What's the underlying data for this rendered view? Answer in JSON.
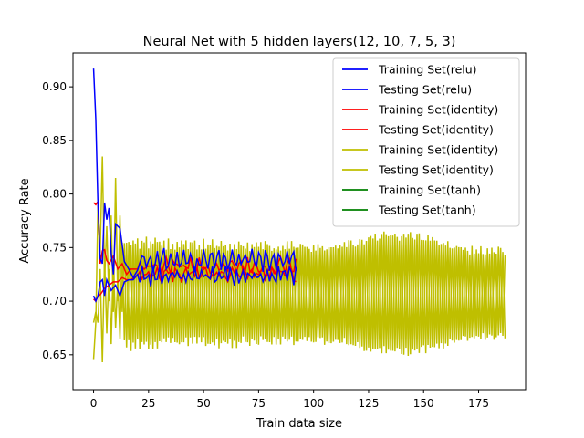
{
  "chart_data": {
    "type": "line",
    "title": "Neural Net with 5 hidden layers(12, 10, 7, 5, 3)",
    "xlabel": "Train data size",
    "ylabel": "Accuracy Rate",
    "xlim": [
      -9.35,
      196.35
    ],
    "ylim": [
      0.6175,
      0.9316
    ],
    "xticks": [
      0,
      25,
      50,
      75,
      100,
      125,
      150,
      175
    ],
    "yticks": [
      0.65,
      0.7,
      0.75,
      0.8,
      0.85,
      0.9
    ],
    "ytick_labels": [
      "0.65",
      "0.70",
      "0.75",
      "0.80",
      "0.85",
      "0.90"
    ],
    "grid": false,
    "legend_position": "top-right",
    "series": [
      {
        "name": "Training Set(relu)",
        "color": "#0000ff",
        "keypoints": [
          [
            0,
            0.917
          ],
          [
            1,
            0.87
          ],
          [
            2,
            0.79
          ],
          [
            3,
            0.74
          ],
          [
            4,
            0.735
          ],
          [
            5,
            0.792
          ],
          [
            6,
            0.776
          ],
          [
            7,
            0.787
          ],
          [
            8,
            0.745
          ],
          [
            9,
            0.725
          ],
          [
            10,
            0.772
          ],
          [
            12,
            0.768
          ],
          [
            14,
            0.737
          ],
          [
            16,
            0.73
          ],
          [
            18,
            0.722
          ],
          [
            20,
            0.729
          ],
          [
            22,
            0.742
          ]
        ],
        "base": 0.738,
        "amp": 0.0075,
        "period": 3.1,
        "x_end": 92
      },
      {
        "name": "Testing Set(relu)",
        "color": "#0000ff",
        "keypoints": [
          [
            0,
            0.705
          ],
          [
            1,
            0.7
          ],
          [
            2,
            0.705
          ],
          [
            3,
            0.718
          ],
          [
            4,
            0.72
          ],
          [
            5,
            0.705
          ],
          [
            6,
            0.72
          ],
          [
            8,
            0.71
          ],
          [
            10,
            0.715
          ],
          [
            12,
            0.705
          ],
          [
            14,
            0.718
          ],
          [
            16,
            0.72
          ],
          [
            18,
            0.72
          ],
          [
            20,
            0.725
          ]
        ],
        "base": 0.724,
        "amp": 0.0065,
        "period": 2.7,
        "x_end": 92
      },
      {
        "name": "Training Set(identity)",
        "color": "#ff0000",
        "keypoints": [
          [
            0,
            0.792
          ],
          [
            1,
            0.79
          ],
          [
            2,
            0.793
          ],
          [
            3,
            0.735
          ],
          [
            4,
            0.747
          ],
          [
            5,
            0.748
          ],
          [
            6,
            0.738
          ],
          [
            7,
            0.735
          ],
          [
            9,
            0.742
          ],
          [
            11,
            0.73
          ],
          [
            13,
            0.735
          ],
          [
            15,
            0.725
          ],
          [
            17,
            0.73
          ],
          [
            20,
            0.73
          ]
        ],
        "base": 0.733,
        "amp": 0.0035,
        "period": 3.7,
        "x_end": 92
      },
      {
        "name": "Testing Set(identity)",
        "color": "#ff0000",
        "keypoints": [
          [
            0,
            0.702
          ],
          [
            1,
            0.7
          ],
          [
            2,
            0.705
          ],
          [
            3,
            0.706
          ],
          [
            5,
            0.712
          ],
          [
            7,
            0.715
          ],
          [
            9,
            0.718
          ],
          [
            11,
            0.718
          ],
          [
            13,
            0.722
          ],
          [
            15,
            0.72
          ],
          [
            17,
            0.72
          ],
          [
            20,
            0.724
          ]
        ],
        "base": 0.725,
        "amp": 0.0035,
        "period": 4.3,
        "x_end": 92
      },
      {
        "name": "Training Set(identity)",
        "color": "#bfbf00",
        "keypoints": [
          [
            0,
            0.646
          ],
          [
            1,
            0.68
          ],
          [
            2,
            0.79
          ],
          [
            3,
            0.745
          ],
          [
            4,
            0.835
          ],
          [
            5,
            0.72
          ],
          [
            6,
            0.77
          ],
          [
            7,
            0.7
          ],
          [
            8,
            0.78
          ],
          [
            9,
            0.69
          ],
          [
            10,
            0.815
          ],
          [
            11,
            0.7
          ],
          [
            12,
            0.78
          ],
          [
            13,
            0.69
          ]
        ],
        "base": 0.707,
        "amp_start": 0.05,
        "amp_end": 0.04,
        "period": 2,
        "x_end": 187
      },
      {
        "name": "Testing Set(identity)",
        "color": "#bfbf00",
        "keypoints": [
          [
            0,
            0.68
          ],
          [
            1,
            0.69
          ],
          [
            2,
            0.68
          ],
          [
            3,
            0.73
          ],
          [
            4,
            0.643
          ],
          [
            5,
            0.74
          ],
          [
            6,
            0.67
          ],
          [
            7,
            0.73
          ],
          [
            8,
            0.66
          ],
          [
            9,
            0.74
          ],
          [
            10,
            0.675
          ],
          [
            11,
            0.72
          ],
          [
            12,
            0.665
          ]
        ],
        "base": 0.707,
        "amp_start": 0.045,
        "amp_end": 0.04,
        "period": 2,
        "x_end": 187
      },
      {
        "name": "Training Set(tanh)",
        "color": "#008000",
        "keypoints": [],
        "x_end": 0
      },
      {
        "name": "Testing Set(tanh)",
        "color": "#008000",
        "keypoints": [],
        "x_end": 0
      }
    ]
  }
}
